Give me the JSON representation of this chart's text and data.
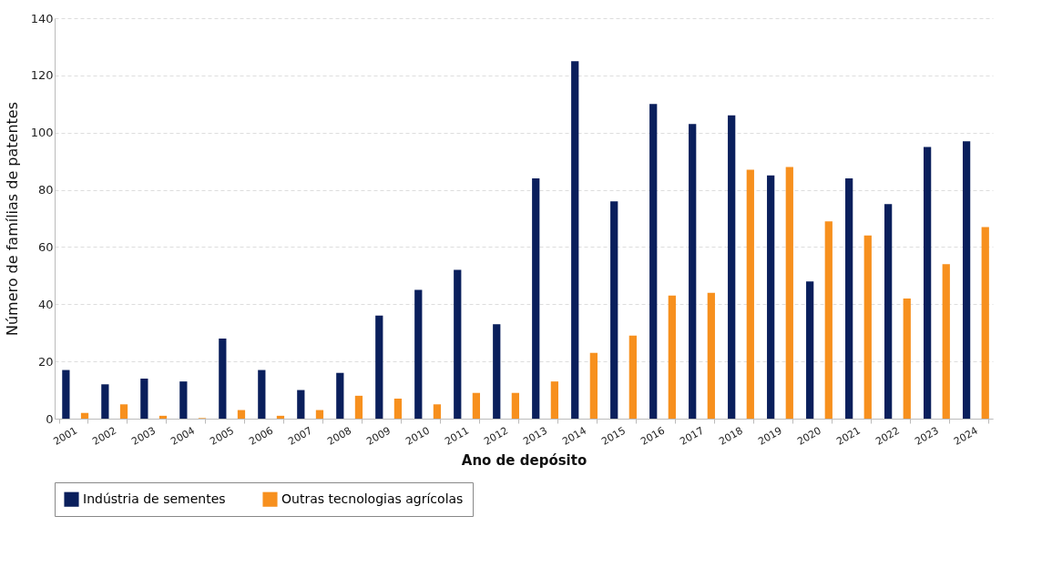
{
  "chart_data": {
    "type": "bar",
    "xlabel": "Ano de depósito",
    "ylabel": "Número de famílias de patentes",
    "categories": [
      "2001",
      "2002",
      "2003",
      "2004",
      "2005",
      "2006",
      "2007",
      "2008",
      "2009",
      "2010",
      "2011",
      "2012",
      "2013",
      "2014",
      "2015",
      "2016",
      "2017",
      "2018",
      "2019",
      "2020",
      "2021",
      "2022",
      "2023",
      "2024"
    ],
    "series": [
      {
        "name": "Indústria de sementes",
        "color": "#0a1f5c",
        "values": [
          17,
          12,
          14,
          13,
          28,
          17,
          10,
          16,
          36,
          45,
          52,
          33,
          84,
          125,
          76,
          110,
          103,
          106,
          85,
          48,
          84,
          75,
          95,
          97
        ]
      },
      {
        "name": "Outras tecnologias agrícolas",
        "color": "#f7901e",
        "values": [
          2,
          5,
          1,
          0.2,
          3,
          1,
          3,
          8,
          7,
          5,
          9,
          9,
          13,
          23,
          29,
          43,
          44,
          87,
          88,
          69,
          64,
          42,
          54,
          67
        ]
      }
    ],
    "ylim": [
      0,
      140
    ],
    "yticks": [
      0,
      20,
      40,
      60,
      80,
      100,
      120,
      140
    ],
    "grid": "y",
    "legend": "bottom"
  }
}
